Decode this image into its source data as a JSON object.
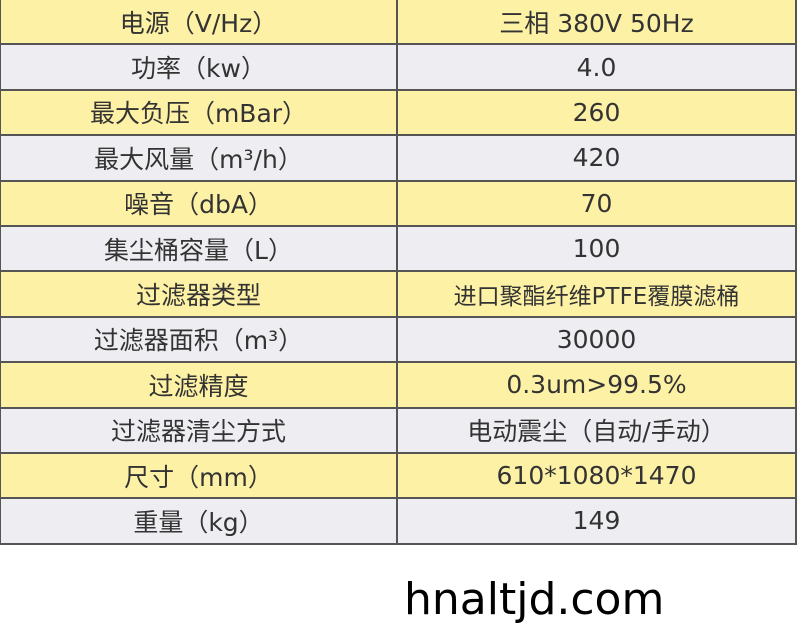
{
  "rows": [
    {
      "label": "电源（V/Hz）",
      "value": "三相 380V 50Hz"
    },
    {
      "label": "功率（kw）",
      "value": "4.0"
    },
    {
      "label": "最大负压（mBar）",
      "value": "260"
    },
    {
      "label": "最大风量（m³/h）",
      "value": "420"
    },
    {
      "label": "噪音（dbA）",
      "value": "70"
    },
    {
      "label": "集尘桶容量（L）",
      "value": "100"
    },
    {
      "label": "过滤器类型",
      "value": "进口聚酯纤维PTFE覆膜滤桶"
    },
    {
      "label": "过滤器面积（m³）",
      "value": "30000"
    },
    {
      "label": "过滤精度",
      "value": "0.3um>99.5%"
    },
    {
      "label": "过滤器清尘方式",
      "value": "电动震尘（自动/手动）"
    },
    {
      "label": "尺寸（mm）",
      "value": "610*1080*1470"
    },
    {
      "label": "重量（kg）",
      "value": "149"
    }
  ],
  "watermark": "hnaltjd.com",
  "colors": {
    "row_yellow": "#fdf1a6",
    "row_gray": "#eeeef2",
    "border": "#555555"
  }
}
